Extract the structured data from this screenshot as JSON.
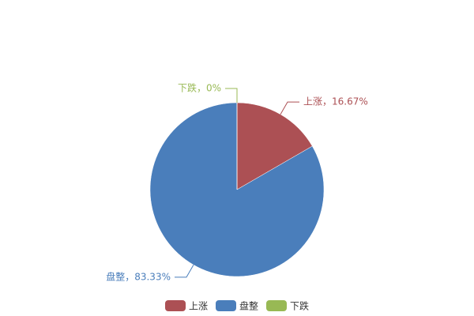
{
  "chart_data": {
    "type": "pie",
    "categories": [
      "上涨",
      "盘整",
      "下跌"
    ],
    "values": [
      16.67,
      83.33,
      0
    ],
    "value_labels": [
      "上涨，16.67%",
      "盘整，83.33%",
      "下跌，0%"
    ],
    "colors": [
      "#ac5054",
      "#4a7ebb",
      "#98b954"
    ]
  }
}
